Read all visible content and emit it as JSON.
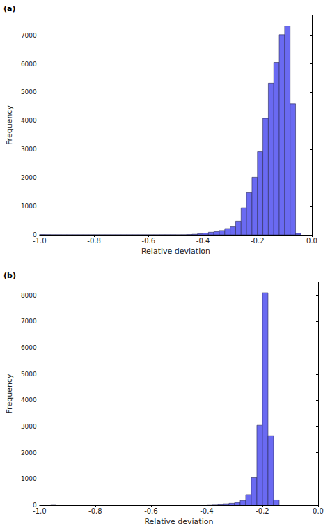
{
  "chart_data": [
    {
      "type": "histogram",
      "title": "(a)",
      "xlabel": "Relative deviation",
      "ylabel": "Frequency",
      "color": "#6a6af2",
      "bins": [
        -1.0,
        -0.98,
        -0.96,
        -0.94,
        -0.92,
        -0.9,
        -0.88,
        -0.86,
        -0.84,
        -0.82,
        -0.8,
        -0.78,
        -0.76,
        -0.74,
        -0.72,
        -0.7,
        -0.68,
        -0.66,
        -0.64,
        -0.62,
        -0.6,
        -0.58,
        -0.56,
        -0.54,
        -0.52,
        -0.5,
        -0.48,
        -0.46,
        -0.44,
        -0.42,
        -0.4,
        -0.38,
        -0.36,
        -0.34,
        -0.32,
        -0.3,
        -0.28,
        -0.26,
        -0.24,
        -0.22,
        -0.2,
        -0.18,
        -0.16,
        -0.14,
        -0.12,
        -0.1,
        -0.08,
        -0.06,
        -0.04,
        -0.02,
        0.0
      ],
      "counts": [
        8,
        5,
        3,
        3,
        2,
        2,
        2,
        2,
        2,
        2,
        2,
        2,
        2,
        2,
        2,
        2,
        2,
        2,
        2,
        2,
        2,
        2,
        3,
        3,
        3,
        3,
        3,
        10,
        20,
        40,
        60,
        90,
        110,
        150,
        220,
        280,
        480,
        950,
        1480,
        2020,
        2920,
        4080,
        5320,
        6050,
        7020,
        7320,
        4600,
        50,
        0,
        0
      ],
      "xlim": [
        -1.0,
        0.0
      ],
      "xticks": [
        {
          "value": -1.0,
          "label": "-1.0"
        },
        -0.8,
        -0.6,
        -0.4,
        -0.2,
        {
          "value": 0.0,
          "label": "0.0"
        }
      ],
      "ylim": [
        0,
        7700
      ],
      "yticks": [
        0,
        1000,
        2000,
        3000,
        4000,
        5000,
        6000,
        7000
      ]
    },
    {
      "type": "histogram",
      "title": "(b)",
      "xlabel": "Relative deviation",
      "ylabel": "Frequency",
      "color": "#6a6af2",
      "bins": [
        -1.0,
        -0.98,
        -0.96,
        -0.94,
        -0.92,
        -0.9,
        -0.88,
        -0.86,
        -0.84,
        -0.82,
        -0.8,
        -0.78,
        -0.76,
        -0.74,
        -0.72,
        -0.7,
        -0.68,
        -0.66,
        -0.64,
        -0.62,
        -0.6,
        -0.58,
        -0.56,
        -0.54,
        -0.52,
        -0.5,
        -0.48,
        -0.46,
        -0.44,
        -0.42,
        -0.4,
        -0.38,
        -0.36,
        -0.34,
        -0.32,
        -0.3,
        -0.28,
        -0.26,
        -0.24,
        -0.22,
        -0.2,
        -0.18,
        -0.16,
        -0.14,
        -0.12,
        -0.1,
        -0.08,
        -0.06,
        -0.04,
        -0.02,
        0.0
      ],
      "counts": [
        5,
        10,
        25,
        5,
        2,
        2,
        2,
        2,
        2,
        2,
        2,
        2,
        2,
        2,
        2,
        2,
        2,
        2,
        2,
        2,
        2,
        2,
        2,
        2,
        2,
        2,
        2,
        3,
        5,
        10,
        20,
        30,
        40,
        50,
        70,
        100,
        180,
        400,
        1050,
        3050,
        8100,
        2650,
        200,
        0,
        0,
        0,
        0,
        0,
        0,
        0
      ],
      "xlim": [
        -1.0,
        0.0
      ],
      "xticks": [
        {
          "value": -1.0,
          "label": "-1.0"
        },
        -0.8,
        -0.6,
        -0.4,
        -0.2,
        {
          "value": 0.0,
          "label": "0.0"
        }
      ],
      "ylim": [
        0,
        8500
      ],
      "yticks": [
        0,
        1000,
        2000,
        3000,
        4000,
        5000,
        6000,
        7000,
        8000
      ]
    }
  ]
}
